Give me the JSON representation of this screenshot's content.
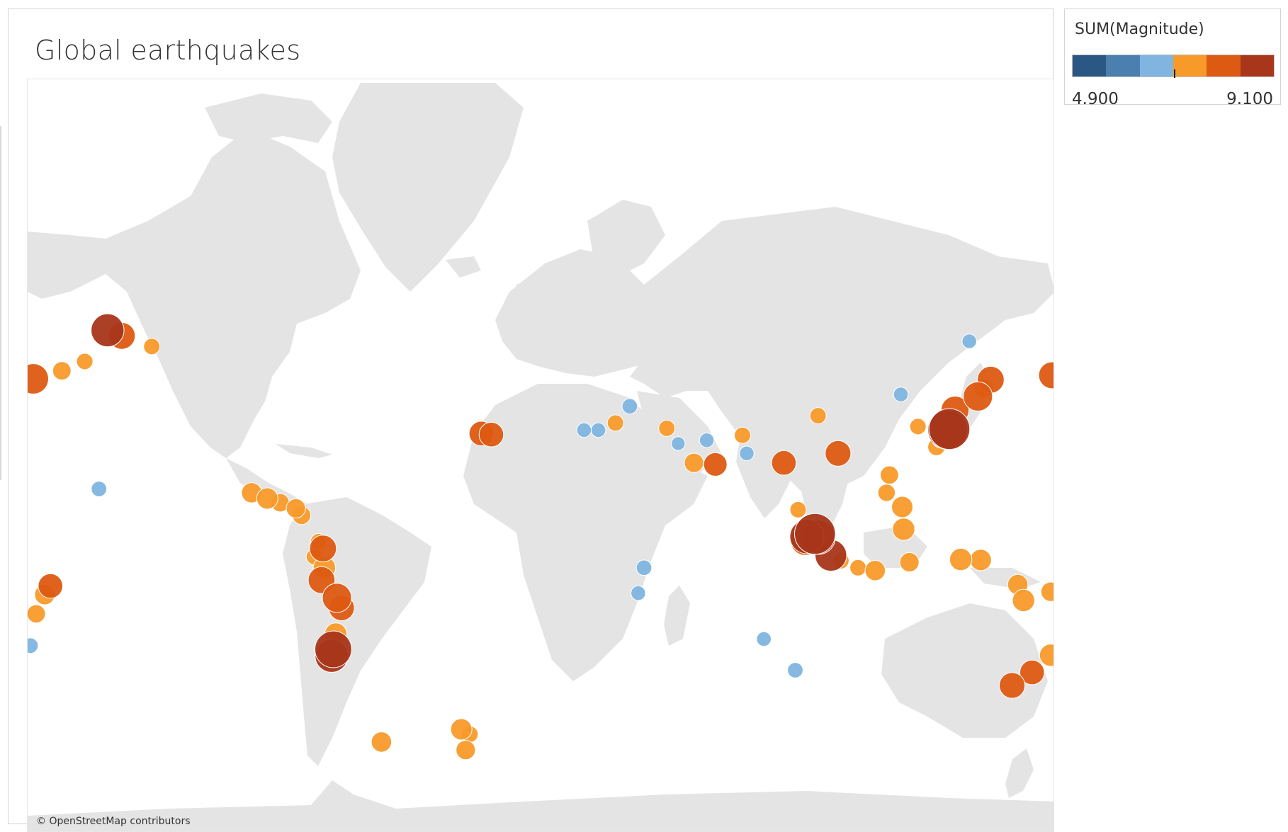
{
  "dashboard": {
    "title": "Global earthquakes"
  },
  "map": {
    "attribution": "© OpenStreetMap contributors",
    "land_color": "#e4e4e4",
    "water_color": "#ffffff"
  },
  "legend": {
    "title": "SUM(Magnitude)",
    "min_label": "4.900",
    "max_label": "9.100",
    "ramp_colors": [
      "#2a5783",
      "#4a7fb0",
      "#7fb5e0",
      "#f89a2a",
      "#dd5a12",
      "#a8361a"
    ]
  },
  "earthquakes": [
    {
      "lon": 143.0,
      "lat": 38.3,
      "mag": 9.1
    },
    {
      "lon": 142.4,
      "lat": 38.1,
      "mag": 9.0
    },
    {
      "lon": 95.9,
      "lat": 3.3,
      "mag": 9.1
    },
    {
      "lon": 97.1,
      "lat": 2.1,
      "mag": 8.6
    },
    {
      "lon": 93.1,
      "lat": 2.3,
      "mag": 8.6
    },
    {
      "lon": -72.9,
      "lat": -36.1,
      "mag": 8.8
    },
    {
      "lon": -73.5,
      "lat": -38.0,
      "mag": 8.5
    },
    {
      "lon": -152.0,
      "lat": 61.0,
      "mag": 8.5
    },
    {
      "lon": -147.0,
      "lat": 60.0,
      "mag": 8.0
    },
    {
      "lon": -71.6,
      "lat": -19.6,
      "mag": 8.2
    },
    {
      "lon": -77.0,
      "lat": -13.4,
      "mag": 8.0
    },
    {
      "lon": -76.5,
      "lat": -2.0,
      "mag": 8.0
    },
    {
      "lon": 101.5,
      "lat": -4.5,
      "mag": 8.4
    },
    {
      "lon": 92.5,
      "lat": 0.8,
      "mag": 8.2
    },
    {
      "lon": -178.0,
      "lat": 51.2,
      "mag": 8.3
    },
    {
      "lon": 153.0,
      "lat": 47.0,
      "mag": 8.2
    },
    {
      "lon": 145.0,
      "lat": 43.5,
      "mag": 8.1
    },
    {
      "lon": 157.5,
      "lat": 51.0,
      "mag": 8.0
    },
    {
      "lon": 179.0,
      "lat": 52.0,
      "mag": 8.0
    },
    {
      "lon": 165.0,
      "lat": -46.0,
      "mag": 7.9
    },
    {
      "lon": 172.0,
      "lat": -42.6,
      "mag": 7.8
    },
    {
      "lon": 178.5,
      "lat": -37.8,
      "mag": 7.6
    },
    {
      "lon": -70.0,
      "lat": -23.0,
      "mag": 7.9
    },
    {
      "lon": -72.0,
      "lat": -31.5,
      "mag": 7.6
    },
    {
      "lon": -76.0,
      "lat": -9.0,
      "mag": 7.6
    },
    {
      "lon": -96.0,
      "lat": 16.0,
      "mag": 7.5
    },
    {
      "lon": -101.5,
      "lat": 18.0,
      "mag": 7.4
    },
    {
      "lon": -21.0,
      "lat": 37.0,
      "mag": 7.8
    },
    {
      "lon": -17.5,
      "lat": 36.7,
      "mag": 7.8
    },
    {
      "lon": 61.0,
      "lat": 27.5,
      "mag": 7.7
    },
    {
      "lon": 53.5,
      "lat": 28.0,
      "mag": 7.3
    },
    {
      "lon": 85.0,
      "lat": 28.0,
      "mag": 7.8
    },
    {
      "lon": 127.0,
      "lat": 5.0,
      "mag": 7.6
    },
    {
      "lon": 126.5,
      "lat": 13.0,
      "mag": 7.5
    },
    {
      "lon": 147.0,
      "lat": -6.0,
      "mag": 7.6
    },
    {
      "lon": 154.0,
      "lat": -6.2,
      "mag": 7.5
    },
    {
      "lon": 167.0,
      "lat": -15.0,
      "mag": 7.4
    },
    {
      "lon": 169.0,
      "lat": -20.5,
      "mag": 7.6
    },
    {
      "lon": 178.5,
      "lat": -17.5,
      "mag": 7.3
    },
    {
      "lon": 129.0,
      "lat": -7.0,
      "mag": 7.3
    },
    {
      "lon": 117.0,
      "lat": -10.0,
      "mag": 7.4
    },
    {
      "lon": -56.0,
      "lat": -58.5,
      "mag": 7.4
    },
    {
      "lon": -28.0,
      "lat": -56.0,
      "mag": 7.5
    },
    {
      "lon": -26.5,
      "lat": -60.0,
      "mag": 7.3
    },
    {
      "lon": -168.0,
      "lat": 53.0,
      "mag": 7.2
    },
    {
      "lon": -160.0,
      "lat": 55.0,
      "mag": 7.0
    },
    {
      "lon": -136.5,
      "lat": 58.0,
      "mag": 7.0
    },
    {
      "lon": -86.0,
      "lat": 12.5,
      "mag": 7.3
    },
    {
      "lon": -84.0,
      "lat": 10.0,
      "mag": 7.2
    },
    {
      "lon": -91.5,
      "lat": 14.5,
      "mag": 7.2
    },
    {
      "lon": -78.0,
      "lat": 0.5,
      "mag": 7.0
    },
    {
      "lon": -79.5,
      "lat": -5.0,
      "mag": 7.0
    },
    {
      "lon": -172.0,
      "lat": -15.5,
      "mag": 7.8
    },
    {
      "lon": -174.0,
      "lat": -18.5,
      "mag": 7.4
    },
    {
      "lon": -177.0,
      "lat": -25.0,
      "mag": 7.2
    },
    {
      "lon": 140.0,
      "lat": 35.5,
      "mag": 7.2
    },
    {
      "lon": 122.0,
      "lat": 24.0,
      "mag": 7.2
    },
    {
      "lon": 121.0,
      "lat": 18.0,
      "mag": 7.1
    },
    {
      "lon": 138.5,
      "lat": 33.0,
      "mag": 7.1
    },
    {
      "lon": 155.0,
      "lat": 49.0,
      "mag": 7.3
    },
    {
      "lon": 90.0,
      "lat": 12.0,
      "mag": 7.0
    },
    {
      "lon": 70.5,
      "lat": 36.5,
      "mag": 7.0
    },
    {
      "lon": 44.0,
      "lat": 38.5,
      "mag": 7.0
    },
    {
      "lon": 26.0,
      "lat": 40.0,
      "mag": 7.0
    },
    {
      "lon": 20.0,
      "lat": 38.0,
      "mag": 6.8
    },
    {
      "lon": 31.0,
      "lat": 44.5,
      "mag": 6.9
    },
    {
      "lon": 95.0,
      "lat": 5.5,
      "mag": 7.0
    },
    {
      "lon": 105.0,
      "lat": -6.5,
      "mag": 7.0
    },
    {
      "lon": 111.0,
      "lat": -9.0,
      "mag": 7.0
    },
    {
      "lon": -25.0,
      "lat": -57.0,
      "mag": 7.0
    },
    {
      "lon": 132.0,
      "lat": 39.0,
      "mag": 7.0
    },
    {
      "lon": 104.0,
      "lat": 31.0,
      "mag": 7.9
    },
    {
      "lon": 97.0,
      "lat": 42.0,
      "mag": 7.0
    },
    {
      "lon": 72.0,
      "lat": 31.0,
      "mag": 6.8
    },
    {
      "lon": 58.0,
      "lat": 35.0,
      "mag": 6.8
    },
    {
      "lon": 48.0,
      "lat": 34.0,
      "mag": 6.7
    },
    {
      "lon": 15.0,
      "lat": 38.0,
      "mag": 6.8
    },
    {
      "lon": 36.0,
      "lat": -9.0,
      "mag": 6.9
    },
    {
      "lon": 34.0,
      "lat": -18.0,
      "mag": 6.8
    },
    {
      "lon": -155.0,
      "lat": 19.3,
      "mag": 6.9
    },
    {
      "lon": -179.0,
      "lat": -35.0,
      "mag": 6.9
    },
    {
      "lon": 89.0,
      "lat": -42.0,
      "mag": 6.9
    },
    {
      "lon": 78.0,
      "lat": -33.0,
      "mag": 6.8
    },
    {
      "lon": 150.0,
      "lat": 59.0,
      "mag": 6.8
    },
    {
      "lon": 126.0,
      "lat": 47.5,
      "mag": 6.8
    }
  ]
}
